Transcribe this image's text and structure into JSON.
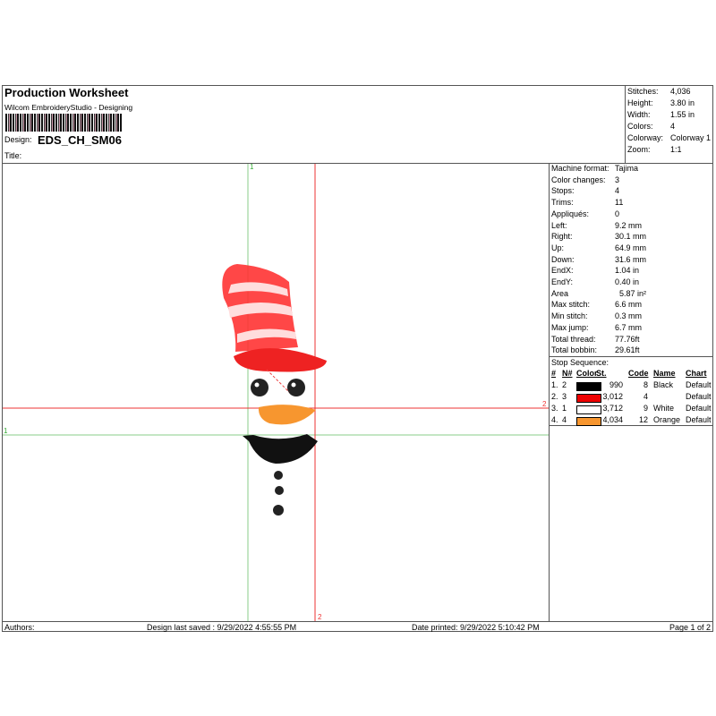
{
  "header": {
    "title": "Production Worksheet",
    "subtitle": "Wilcom EmbroideryStudio - Designing",
    "design_label": "Design:",
    "design_value": "EDS_CH_SM06",
    "title_label": "Title:"
  },
  "summary": [
    {
      "label": "Stitches:",
      "value": "4,036"
    },
    {
      "label": "Height:",
      "value": "3.80 in"
    },
    {
      "label": "Width:",
      "value": "1.55 in"
    },
    {
      "label": "Colors:",
      "value": "4"
    },
    {
      "label": "Colorway:",
      "value": "Colorway 1"
    },
    {
      "label": "Zoom:",
      "value": "1:1"
    }
  ],
  "details": [
    {
      "label": "Machine format:",
      "value": "Tajima"
    },
    {
      "label": "Color changes:",
      "value": "3"
    },
    {
      "label": "Stops:",
      "value": "4"
    },
    {
      "label": "Trims:",
      "value": "11"
    },
    {
      "label": "Appliqués:",
      "value": "0"
    },
    {
      "label": "Left:",
      "value": "9.2 mm"
    },
    {
      "label": "Right:",
      "value": "30.1 mm"
    },
    {
      "label": "Up:",
      "value": "64.9 mm"
    },
    {
      "label": "Down:",
      "value": "31.6 mm"
    },
    {
      "label": "EndX:",
      "value": "1.04 in"
    },
    {
      "label": "EndY:",
      "value": "0.40 in"
    },
    {
      "label": "Area",
      "value": "5.87 in²"
    },
    {
      "label": "Max stitch:",
      "value": "6.6 mm"
    },
    {
      "label": "Min stitch:",
      "value": "0.3 mm"
    },
    {
      "label": "Max jump:",
      "value": "6.7 mm"
    },
    {
      "label": "Total thread:",
      "value": "77.76ft"
    },
    {
      "label": "Total bobbin:",
      "value": "29.61ft"
    }
  ],
  "stop_sequence": {
    "title": "Stop Sequence:",
    "columns": [
      "#",
      "N#",
      "Color",
      "St.",
      "Code",
      "Name",
      "Chart"
    ],
    "rows": [
      {
        "n": "1.",
        "nn": "2",
        "color": "#000000",
        "st": "990",
        "code": "8",
        "name": "Black",
        "chart": "Default"
      },
      {
        "n": "2.",
        "nn": "3",
        "color": "#ee0000",
        "st": "3,012",
        "code": "4",
        "name": "",
        "chart": "Default"
      },
      {
        "n": "3.",
        "nn": "1",
        "color": "#ffffff",
        "st": "3,712",
        "code": "9",
        "name": "White",
        "chart": "Default"
      },
      {
        "n": "4.",
        "nn": "4",
        "color": "#f7962f",
        "st": "4,034",
        "code": "12",
        "name": "Orange",
        "chart": "Default"
      }
    ]
  },
  "markers": {
    "green": "1",
    "red": "2"
  },
  "footer": {
    "authors": "Authors:",
    "saved": "Design last saved : 9/29/2022 4:55:55 PM",
    "printed": "Date printed: 9/29/2022 5:10:42 PM",
    "page": "Page 1 of 2"
  }
}
